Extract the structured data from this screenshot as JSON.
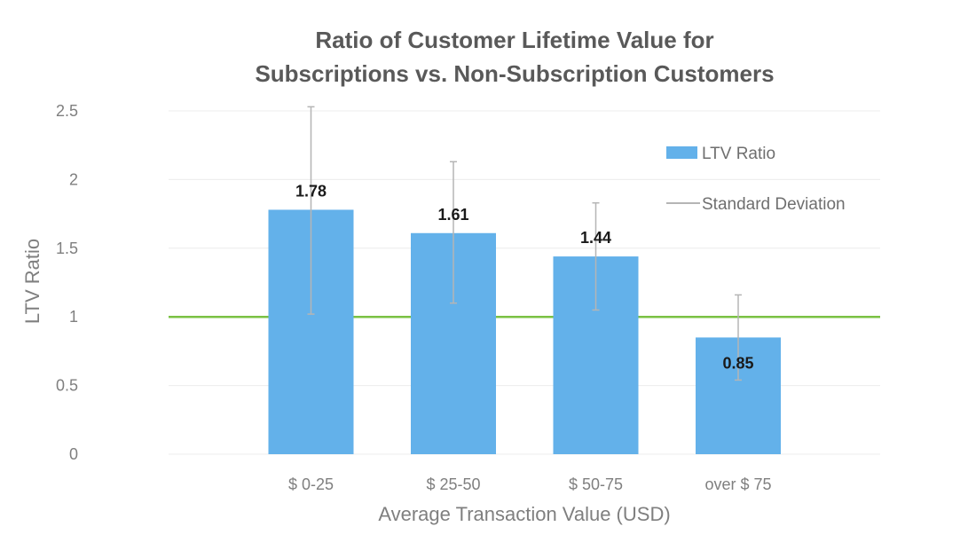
{
  "chart_data": {
    "type": "bar",
    "title_line1": "Ratio of Customer Lifetime Value for",
    "title_line2": "Subscriptions vs. Non-Subscription Customers",
    "xlabel": "Average Transaction Value (USD)",
    "ylabel": "LTV Ratio",
    "categories": [
      "$ 0-25",
      "$ 25-50",
      "$ 50-75",
      "over $ 75"
    ],
    "series": [
      {
        "name": "LTV Ratio",
        "values": [
          1.78,
          1.61,
          1.44,
          0.85
        ],
        "value_labels": [
          "1.78",
          "1.61",
          "1.44",
          "0.85"
        ],
        "color": "#63b1ea"
      }
    ],
    "error_bars": {
      "name": "Standard Deviation",
      "low": [
        1.02,
        1.1,
        1.05,
        0.54
      ],
      "high": [
        2.53,
        2.13,
        1.83,
        1.16
      ],
      "color": "#b5b5b5"
    },
    "reference_line": {
      "value": 1.0,
      "color": "#7ac143"
    },
    "ylim": [
      0,
      2.5
    ],
    "yticks": [
      0,
      0.5,
      1,
      1.5,
      2,
      2.5
    ],
    "ytick_labels": [
      "0",
      "0.5",
      "1",
      "1.5",
      "2",
      "2.5"
    ],
    "grid": true,
    "legend_position": "top-right"
  }
}
